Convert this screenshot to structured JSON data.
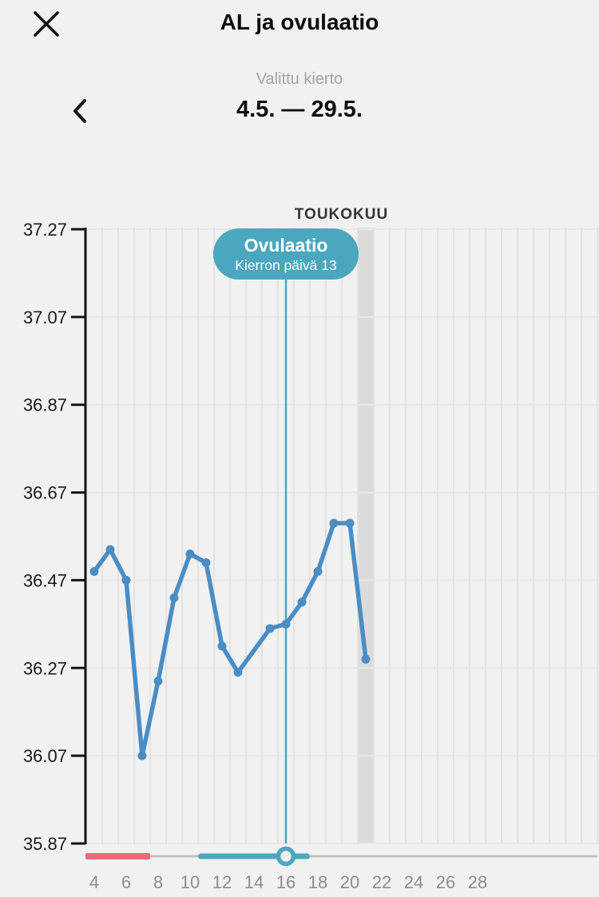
{
  "header": {
    "title": "AL ja ovulaatio",
    "close_icon": "close-icon"
  },
  "cycle_selector": {
    "label": "Valittu kierto",
    "range": "4.5. — 29.5.",
    "prev_icon": "chevron-left-icon"
  },
  "chart_data": {
    "type": "line",
    "title": "",
    "month_label": "TOUKOKUU",
    "xlabel": "",
    "ylabel": "",
    "x": [
      4,
      5,
      6,
      7,
      8,
      9,
      10,
      11,
      12,
      13,
      14,
      15,
      16,
      17,
      18,
      19,
      20,
      21
    ],
    "values": [
      36.49,
      36.54,
      36.47,
      36.07,
      36.24,
      36.43,
      36.53,
      36.51,
      36.32,
      36.26,
      null,
      36.36,
      36.37,
      36.42,
      36.49,
      36.6,
      36.6,
      36.29
    ],
    "y_tick_labels": [
      "37.27",
      "37.07",
      "36.87",
      "36.67",
      "36.47",
      "36.27",
      "36.07",
      "35.87"
    ],
    "ylim": [
      35.87,
      37.27
    ],
    "x_tick_labels": [
      "4",
      "6",
      "8",
      "10",
      "12",
      "14",
      "16",
      "18",
      "20",
      "22",
      "24",
      "26",
      "28"
    ],
    "x_tick_days": [
      4,
      6,
      8,
      10,
      12,
      14,
      16,
      18,
      20,
      22,
      24,
      26,
      28
    ],
    "xlim_days": [
      4,
      35
    ],
    "grid": true,
    "legend": false,
    "annotation": {
      "title": "Ovulaatio",
      "subtitle": "Kierron päivä 13",
      "day": 16,
      "cycle_day": 13
    },
    "highlight_day": 21,
    "period_days": {
      "start": 4,
      "end": 7
    },
    "fertile_days": {
      "start": 11,
      "end": 17
    },
    "slider_day": 16
  },
  "colors": {
    "accent_teal": "#4BA7BD",
    "line_blue": "#4A8DC5",
    "period_red": "#E46D76",
    "highlight_gray": "#DBDBDB",
    "track_gray": "#C3C3C3",
    "grid_v": "#E2E2E2",
    "grid_h": "#E8E8E8",
    "axis_black": "#141414",
    "x_label_gray": "#8D8D8D"
  }
}
